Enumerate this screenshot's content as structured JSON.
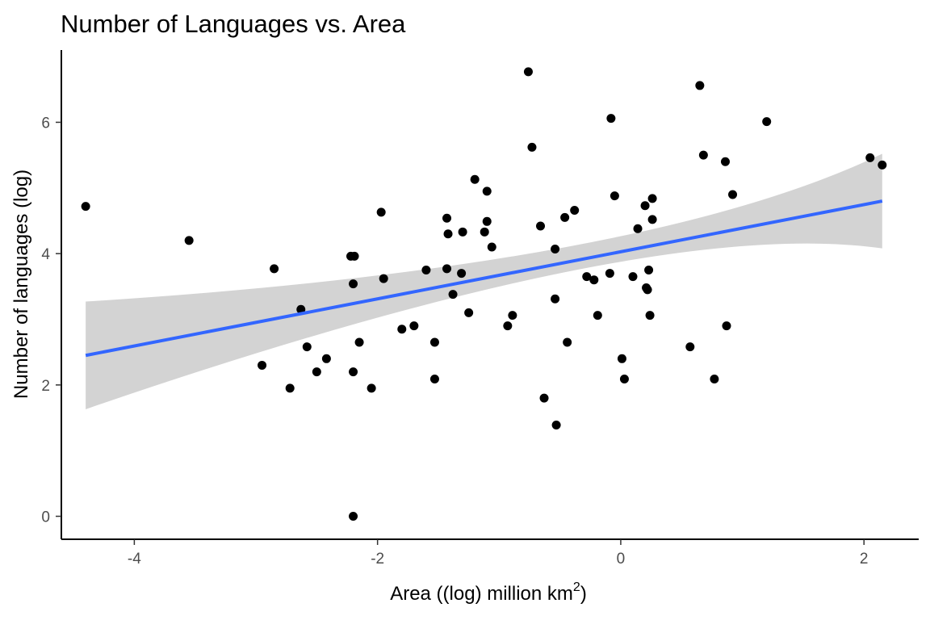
{
  "chart_data": {
    "type": "scatter",
    "title": "Number of Languages vs. Area",
    "xlabel": "Area ((log) million km",
    "xlabel_superscript": "2",
    "xlabel_suffix": ")",
    "ylabel": "Number of languages (log)",
    "xlim": [
      -4.6,
      2.45
    ],
    "ylim": [
      -0.35,
      7.1
    ],
    "x_ticks": [
      -4,
      -2,
      0,
      2
    ],
    "y_ticks": [
      0,
      2,
      4,
      6
    ],
    "grid": false,
    "legend": "none",
    "colors": {
      "points": "#000000",
      "fit_line": "#3366ff",
      "ribbon": "#d3d3d3"
    },
    "fit": {
      "method": "linear",
      "x": [
        -4.4,
        2.15
      ],
      "y": [
        2.45,
        4.8
      ],
      "ci_lower": [
        1.63,
        4.08
      ],
      "ci_upper": [
        3.27,
        5.52
      ],
      "ci_mid_x": -0.45,
      "ci_mid_lower": 3.72,
      "ci_mid_upper": 4.1
    },
    "points": [
      {
        "x": -4.4,
        "y": 4.72
      },
      {
        "x": -3.55,
        "y": 4.2
      },
      {
        "x": -2.85,
        "y": 3.77
      },
      {
        "x": -2.95,
        "y": 2.3
      },
      {
        "x": -2.63,
        "y": 3.15
      },
      {
        "x": -2.58,
        "y": 2.58
      },
      {
        "x": -2.5,
        "y": 2.2
      },
      {
        "x": -2.42,
        "y": 2.4
      },
      {
        "x": -2.72,
        "y": 1.95
      },
      {
        "x": -2.22,
        "y": 3.96
      },
      {
        "x": -2.19,
        "y": 3.96
      },
      {
        "x": -2.2,
        "y": 3.54
      },
      {
        "x": -2.2,
        "y": 2.2
      },
      {
        "x": -2.15,
        "y": 2.65
      },
      {
        "x": -2.2,
        "y": 0.0
      },
      {
        "x": -2.05,
        "y": 1.95
      },
      {
        "x": -1.97,
        "y": 4.63
      },
      {
        "x": -1.95,
        "y": 3.62
      },
      {
        "x": -1.8,
        "y": 2.85
      },
      {
        "x": -1.7,
        "y": 2.9
      },
      {
        "x": -1.6,
        "y": 3.75
      },
      {
        "x": -1.53,
        "y": 2.65
      },
      {
        "x": -1.53,
        "y": 2.09
      },
      {
        "x": -1.43,
        "y": 4.54
      },
      {
        "x": -1.42,
        "y": 4.3
      },
      {
        "x": -1.43,
        "y": 3.77
      },
      {
        "x": -1.38,
        "y": 3.38
      },
      {
        "x": -1.3,
        "y": 4.33
      },
      {
        "x": -1.31,
        "y": 3.7
      },
      {
        "x": -1.25,
        "y": 3.1
      },
      {
        "x": -1.2,
        "y": 5.13
      },
      {
        "x": -1.1,
        "y": 4.95
      },
      {
        "x": -1.1,
        "y": 4.49
      },
      {
        "x": -1.12,
        "y": 4.33
      },
      {
        "x": -1.06,
        "y": 4.1
      },
      {
        "x": -0.93,
        "y": 2.9
      },
      {
        "x": -0.89,
        "y": 3.06
      },
      {
        "x": -0.76,
        "y": 6.77
      },
      {
        "x": -0.73,
        "y": 5.62
      },
      {
        "x": -0.66,
        "y": 4.42
      },
      {
        "x": -0.63,
        "y": 1.8
      },
      {
        "x": -0.54,
        "y": 4.07
      },
      {
        "x": -0.54,
        "y": 3.31
      },
      {
        "x": -0.53,
        "y": 1.39
      },
      {
        "x": -0.46,
        "y": 4.55
      },
      {
        "x": -0.44,
        "y": 2.65
      },
      {
        "x": -0.38,
        "y": 4.66
      },
      {
        "x": -0.28,
        "y": 3.65
      },
      {
        "x": -0.22,
        "y": 3.6
      },
      {
        "x": -0.19,
        "y": 3.06
      },
      {
        "x": -0.08,
        "y": 6.06
      },
      {
        "x": -0.09,
        "y": 3.7
      },
      {
        "x": -0.05,
        "y": 4.88
      },
      {
        "x": 0.01,
        "y": 2.4
      },
      {
        "x": 0.03,
        "y": 2.09
      },
      {
        "x": 0.1,
        "y": 3.65
      },
      {
        "x": 0.14,
        "y": 4.38
      },
      {
        "x": 0.2,
        "y": 4.73
      },
      {
        "x": 0.21,
        "y": 3.48
      },
      {
        "x": 0.22,
        "y": 3.45
      },
      {
        "x": 0.23,
        "y": 3.75
      },
      {
        "x": 0.24,
        "y": 3.06
      },
      {
        "x": 0.26,
        "y": 4.84
      },
      {
        "x": 0.26,
        "y": 4.52
      },
      {
        "x": 0.57,
        "y": 2.58
      },
      {
        "x": 0.65,
        "y": 6.56
      },
      {
        "x": 0.68,
        "y": 5.5
      },
      {
        "x": 0.77,
        "y": 2.09
      },
      {
        "x": 0.86,
        "y": 5.4
      },
      {
        "x": 0.87,
        "y": 2.9
      },
      {
        "x": 0.92,
        "y": 4.9
      },
      {
        "x": 1.2,
        "y": 6.01
      },
      {
        "x": 2.05,
        "y": 5.46
      },
      {
        "x": 2.15,
        "y": 5.35
      }
    ]
  }
}
